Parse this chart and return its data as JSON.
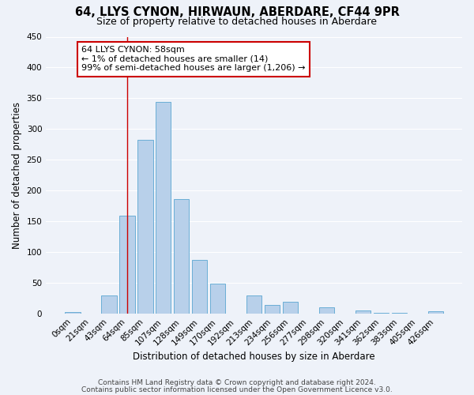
{
  "title": "64, LLYS CYNON, HIRWAUN, ABERDARE, CF44 9PR",
  "subtitle": "Size of property relative to detached houses in Aberdare",
  "xlabel": "Distribution of detached houses by size in Aberdare",
  "ylabel": "Number of detached properties",
  "bar_labels": [
    "0sqm",
    "21sqm",
    "43sqm",
    "64sqm",
    "85sqm",
    "107sqm",
    "128sqm",
    "149sqm",
    "170sqm",
    "192sqm",
    "213sqm",
    "234sqm",
    "256sqm",
    "277sqm",
    "298sqm",
    "320sqm",
    "341sqm",
    "362sqm",
    "383sqm",
    "405sqm",
    "426sqm"
  ],
  "bar_values": [
    3,
    0,
    30,
    160,
    283,
    344,
    186,
    88,
    49,
    0,
    30,
    14,
    20,
    0,
    11,
    0,
    5,
    1,
    1,
    0,
    4
  ],
  "bar_color": "#b8d0ea",
  "bar_edge_color": "#6aaed6",
  "ylim": [
    0,
    450
  ],
  "yticks": [
    0,
    50,
    100,
    150,
    200,
    250,
    300,
    350,
    400,
    450
  ],
  "vline_x": 3,
  "vline_color": "#cc0000",
  "annotation_text": "64 LLYS CYNON: 58sqm\n← 1% of detached houses are smaller (14)\n99% of semi-detached houses are larger (1,206) →",
  "annotation_box_color": "#ffffff",
  "annotation_box_edge": "#cc0000",
  "footer_line1": "Contains HM Land Registry data © Crown copyright and database right 2024.",
  "footer_line2": "Contains public sector information licensed under the Open Government Licence v3.0.",
  "background_color": "#eef2f9",
  "grid_color": "#ffffff",
  "title_fontsize": 10.5,
  "subtitle_fontsize": 9,
  "axis_label_fontsize": 8.5,
  "tick_fontsize": 7.5,
  "annotation_fontsize": 8,
  "footer_fontsize": 6.5
}
